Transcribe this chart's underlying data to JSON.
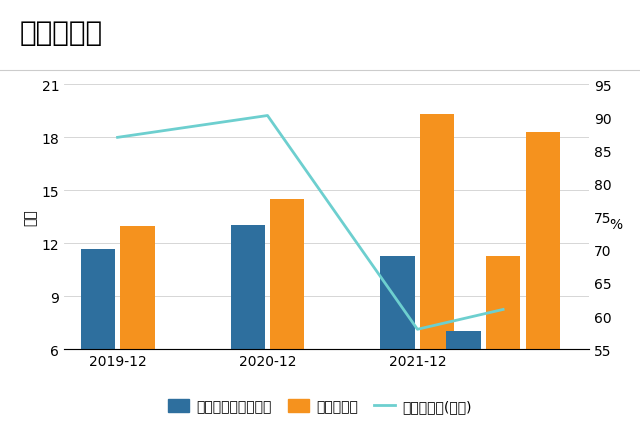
{
  "title": "现金收入比",
  "ylabel_left": "亿元",
  "ylabel_right": "%",
  "legend_labels": [
    "销售商品收到的现金",
    "营业总收入",
    "现金流占比(右轴)"
  ],
  "xtick_labels": [
    "2019-12",
    "2020-12",
    "2021-12"
  ],
  "blue_bars": [
    11.65,
    13.05,
    11.25,
    7.0
  ],
  "orange_bars_main": [
    13.0,
    14.5,
    19.35,
    18.3
  ],
  "orange_bar_extra": 11.3,
  "line_values": [
    87.0,
    90.3,
    58.0,
    61.0
  ],
  "ylim_left": [
    6,
    21
  ],
  "ylim_right": [
    55,
    95
  ],
  "yticks_left": [
    6,
    9,
    12,
    15,
    18,
    21
  ],
  "yticks_right": [
    55,
    60,
    65,
    70,
    75,
    80,
    85,
    90,
    95
  ],
  "bar_color_blue": "#2e6f9e",
  "bar_color_orange": "#f5921e",
  "line_color": "#6dcfcf",
  "background_color": "#ffffff",
  "grid_color": "#d0d0d0",
  "title_fontsize": 20,
  "tick_label_fontsize": 10,
  "legend_fontsize": 10,
  "group_positions": [
    0.5,
    1.9,
    3.3,
    4.1
  ],
  "bar_width": 0.32,
  "bar_gap": 0.05,
  "xlim": [
    0.0,
    4.9
  ],
  "xtick_positions": [
    0.5,
    1.9,
    3.3
  ]
}
